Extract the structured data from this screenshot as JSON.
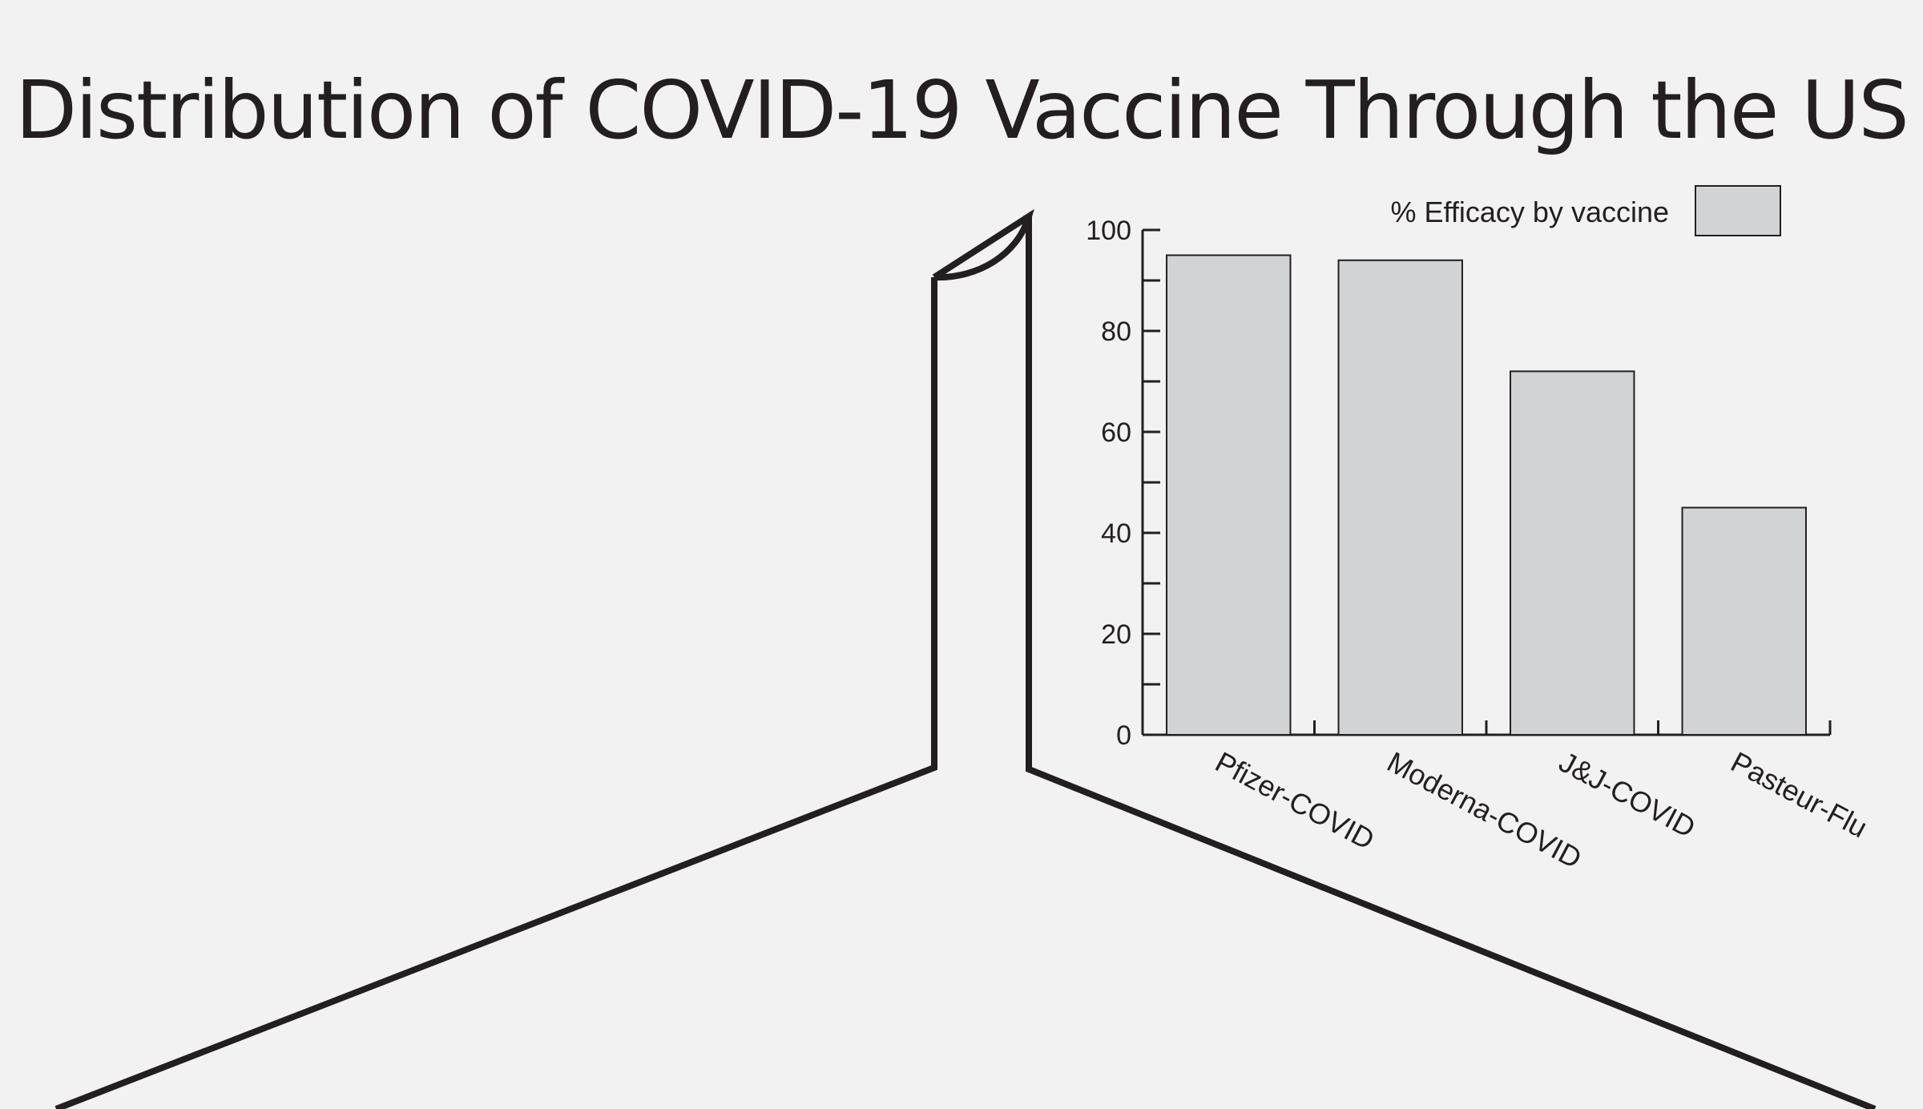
{
  "chart_data": {
    "type": "bar",
    "title": "Distribution of  COVID-19 Vaccine Through the US",
    "categories": [
      "Pfizer-COVID",
      "Moderna-COVID",
      "J&J-COVID",
      "Pasteur-Flu"
    ],
    "series": [
      {
        "name": "% Efficacy by vaccine",
        "values": [
          95,
          94,
          72,
          45
        ]
      }
    ],
    "xlabel": "",
    "ylabel": "",
    "ylim": [
      0,
      100
    ],
    "yticks": [
      0,
      20,
      40,
      60,
      80,
      100
    ],
    "grid": false,
    "legend_position": "top-right",
    "colors": {
      "bar_fill": "#d1d3d4",
      "stroke": "#231f20",
      "background": "#f2f2f2"
    }
  }
}
